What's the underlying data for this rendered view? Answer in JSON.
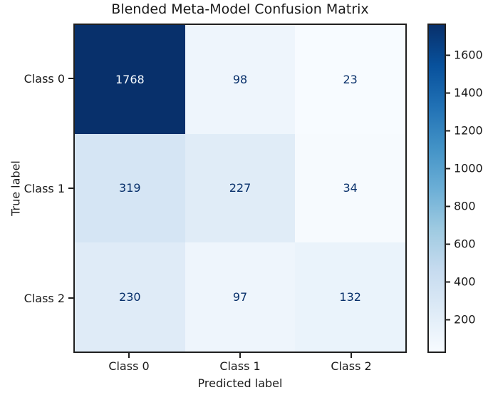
{
  "figure": {
    "background": "#ffffff",
    "axis_text_color": "#1a1a1a",
    "spine_color": "#1f1f1f"
  },
  "chart_data": {
    "type": "heatmap",
    "title": "Blended Meta-Model Confusion Matrix",
    "xlabel": "Predicted label",
    "ylabel": "True label",
    "x_categories": [
      "Class 0",
      "Class 1",
      "Class 2"
    ],
    "y_categories": [
      "Class 0",
      "Class 1",
      "Class 2"
    ],
    "values": [
      [
        1768,
        98,
        23
      ],
      [
        319,
        227,
        34
      ],
      [
        230,
        97,
        132
      ]
    ],
    "vmin": 23,
    "vmax": 1768,
    "colormap": "Blues",
    "legend_position": "right-colorbar",
    "grid": false,
    "colorbar_ticks": [
      200,
      400,
      600,
      800,
      1000,
      1200,
      1400,
      1600
    ],
    "cell_colors": [
      [
        "#08306b",
        "#eef5fc",
        "#f7fbff"
      ],
      [
        "#d5e5f4",
        "#e0ecf7",
        "#f6fafe"
      ],
      [
        "#dfebf7",
        "#eef5fc",
        "#eaf3fb"
      ]
    ],
    "text_color_on_dark": "#f7fbff",
    "text_color_on_light": "#08306b",
    "colormap_stops": [
      {
        "t": 0.0,
        "color": "#f7fbff"
      },
      {
        "t": 0.125,
        "color": "#deebf7"
      },
      {
        "t": 0.25,
        "color": "#c6dbef"
      },
      {
        "t": 0.375,
        "color": "#9ecae1"
      },
      {
        "t": 0.5,
        "color": "#6baed6"
      },
      {
        "t": 0.625,
        "color": "#4292c6"
      },
      {
        "t": 0.75,
        "color": "#2171b5"
      },
      {
        "t": 0.875,
        "color": "#08519c"
      },
      {
        "t": 1.0,
        "color": "#08306b"
      }
    ]
  }
}
